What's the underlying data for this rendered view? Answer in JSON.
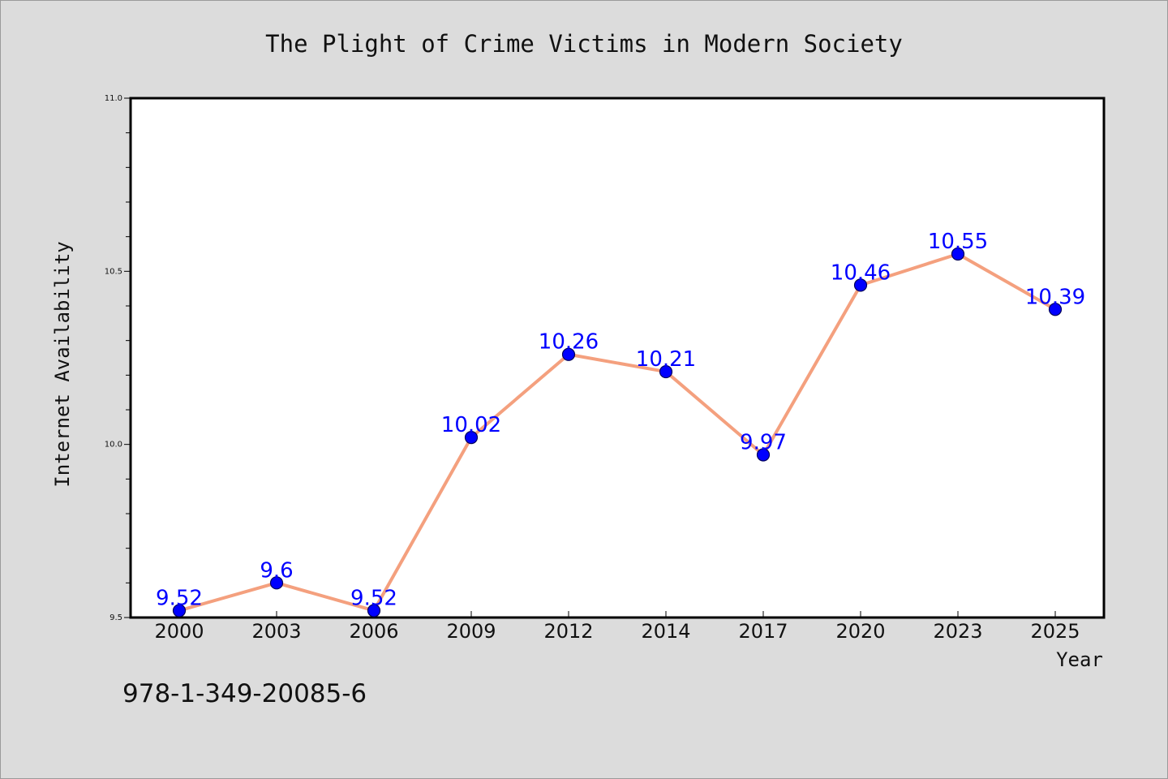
{
  "chart_data": {
    "type": "line",
    "title": "The Plight of Crime Victims in Modern Society",
    "xlabel": "Year",
    "ylabel": "Internet Availability",
    "categories": [
      "2000",
      "2003",
      "2006",
      "2009",
      "2012",
      "2014",
      "2017",
      "2020",
      "2023",
      "2025"
    ],
    "series": [
      {
        "values": [
          9.52,
          9.6,
          9.52,
          10.02,
          10.26,
          10.21,
          9.97,
          10.46,
          10.55,
          10.39
        ]
      }
    ],
    "data_labels": [
      "9.52",
      "9.6",
      "9.52",
      "10.02",
      "10.26",
      "10.21",
      "9.97",
      "10.46",
      "10.55",
      "10.39"
    ],
    "ylim": [
      9.5,
      11.0
    ],
    "yticks": [
      "9.5",
      "10.0",
      "10.5",
      "11.0"
    ],
    "grid": false,
    "colors": {
      "line": "#f4a07e",
      "marker": "#0000ff",
      "data_label": "#0000ff",
      "background": "#dcdcdc",
      "plot_area": "#ffffff"
    }
  },
  "footer": {
    "isbn": "978-1-349-20085-6"
  }
}
